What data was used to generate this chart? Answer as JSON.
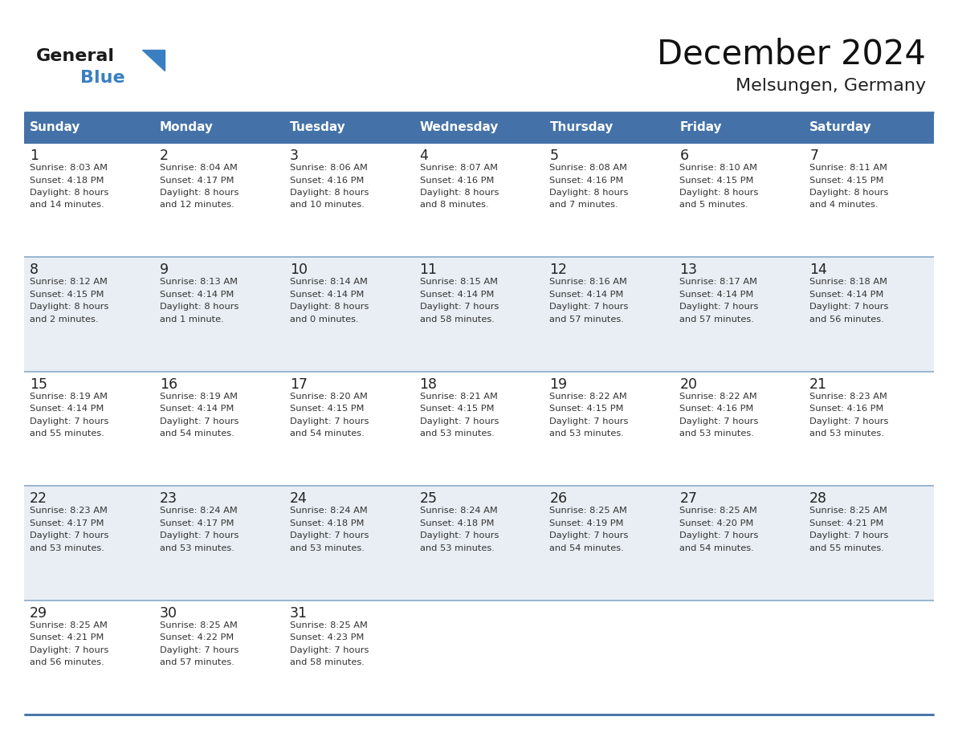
{
  "title": "December 2024",
  "subtitle": "Melsungen, Germany",
  "header_color": "#4472A8",
  "header_text_color": "#FFFFFF",
  "row_colors": [
    "#FFFFFF",
    "#E8EEF4"
  ],
  "day_label_color": "#222222",
  "text_color": "#333333",
  "border_color": "#4472A8",
  "line_color": "#8AAAC8",
  "days_of_week": [
    "Sunday",
    "Monday",
    "Tuesday",
    "Wednesday",
    "Thursday",
    "Friday",
    "Saturday"
  ],
  "weeks": [
    [
      {
        "day": 1,
        "sunrise": "8:03 AM",
        "sunset": "4:18 PM",
        "daylight": "8 hours",
        "daylight2": "and 14 minutes."
      },
      {
        "day": 2,
        "sunrise": "8:04 AM",
        "sunset": "4:17 PM",
        "daylight": "8 hours",
        "daylight2": "and 12 minutes."
      },
      {
        "day": 3,
        "sunrise": "8:06 AM",
        "sunset": "4:16 PM",
        "daylight": "8 hours",
        "daylight2": "and 10 minutes."
      },
      {
        "day": 4,
        "sunrise": "8:07 AM",
        "sunset": "4:16 PM",
        "daylight": "8 hours",
        "daylight2": "and 8 minutes."
      },
      {
        "day": 5,
        "sunrise": "8:08 AM",
        "sunset": "4:16 PM",
        "daylight": "8 hours",
        "daylight2": "and 7 minutes."
      },
      {
        "day": 6,
        "sunrise": "8:10 AM",
        "sunset": "4:15 PM",
        "daylight": "8 hours",
        "daylight2": "and 5 minutes."
      },
      {
        "day": 7,
        "sunrise": "8:11 AM",
        "sunset": "4:15 PM",
        "daylight": "8 hours",
        "daylight2": "and 4 minutes."
      }
    ],
    [
      {
        "day": 8,
        "sunrise": "8:12 AM",
        "sunset": "4:15 PM",
        "daylight": "8 hours",
        "daylight2": "and 2 minutes."
      },
      {
        "day": 9,
        "sunrise": "8:13 AM",
        "sunset": "4:14 PM",
        "daylight": "8 hours",
        "daylight2": "and 1 minute."
      },
      {
        "day": 10,
        "sunrise": "8:14 AM",
        "sunset": "4:14 PM",
        "daylight": "8 hours",
        "daylight2": "and 0 minutes."
      },
      {
        "day": 11,
        "sunrise": "8:15 AM",
        "sunset": "4:14 PM",
        "daylight": "7 hours",
        "daylight2": "and 58 minutes."
      },
      {
        "day": 12,
        "sunrise": "8:16 AM",
        "sunset": "4:14 PM",
        "daylight": "7 hours",
        "daylight2": "and 57 minutes."
      },
      {
        "day": 13,
        "sunrise": "8:17 AM",
        "sunset": "4:14 PM",
        "daylight": "7 hours",
        "daylight2": "and 57 minutes."
      },
      {
        "day": 14,
        "sunrise": "8:18 AM",
        "sunset": "4:14 PM",
        "daylight": "7 hours",
        "daylight2": "and 56 minutes."
      }
    ],
    [
      {
        "day": 15,
        "sunrise": "8:19 AM",
        "sunset": "4:14 PM",
        "daylight": "7 hours",
        "daylight2": "and 55 minutes."
      },
      {
        "day": 16,
        "sunrise": "8:19 AM",
        "sunset": "4:14 PM",
        "daylight": "7 hours",
        "daylight2": "and 54 minutes."
      },
      {
        "day": 17,
        "sunrise": "8:20 AM",
        "sunset": "4:15 PM",
        "daylight": "7 hours",
        "daylight2": "and 54 minutes."
      },
      {
        "day": 18,
        "sunrise": "8:21 AM",
        "sunset": "4:15 PM",
        "daylight": "7 hours",
        "daylight2": "and 53 minutes."
      },
      {
        "day": 19,
        "sunrise": "8:22 AM",
        "sunset": "4:15 PM",
        "daylight": "7 hours",
        "daylight2": "and 53 minutes."
      },
      {
        "day": 20,
        "sunrise": "8:22 AM",
        "sunset": "4:16 PM",
        "daylight": "7 hours",
        "daylight2": "and 53 minutes."
      },
      {
        "day": 21,
        "sunrise": "8:23 AM",
        "sunset": "4:16 PM",
        "daylight": "7 hours",
        "daylight2": "and 53 minutes."
      }
    ],
    [
      {
        "day": 22,
        "sunrise": "8:23 AM",
        "sunset": "4:17 PM",
        "daylight": "7 hours",
        "daylight2": "and 53 minutes."
      },
      {
        "day": 23,
        "sunrise": "8:24 AM",
        "sunset": "4:17 PM",
        "daylight": "7 hours",
        "daylight2": "and 53 minutes."
      },
      {
        "day": 24,
        "sunrise": "8:24 AM",
        "sunset": "4:18 PM",
        "daylight": "7 hours",
        "daylight2": "and 53 minutes."
      },
      {
        "day": 25,
        "sunrise": "8:24 AM",
        "sunset": "4:18 PM",
        "daylight": "7 hours",
        "daylight2": "and 53 minutes."
      },
      {
        "day": 26,
        "sunrise": "8:25 AM",
        "sunset": "4:19 PM",
        "daylight": "7 hours",
        "daylight2": "and 54 minutes."
      },
      {
        "day": 27,
        "sunrise": "8:25 AM",
        "sunset": "4:20 PM",
        "daylight": "7 hours",
        "daylight2": "and 54 minutes."
      },
      {
        "day": 28,
        "sunrise": "8:25 AM",
        "sunset": "4:21 PM",
        "daylight": "7 hours",
        "daylight2": "and 55 minutes."
      }
    ],
    [
      {
        "day": 29,
        "sunrise": "8:25 AM",
        "sunset": "4:21 PM",
        "daylight": "7 hours",
        "daylight2": "and 56 minutes."
      },
      {
        "day": 30,
        "sunrise": "8:25 AM",
        "sunset": "4:22 PM",
        "daylight": "7 hours",
        "daylight2": "and 57 minutes."
      },
      {
        "day": 31,
        "sunrise": "8:25 AM",
        "sunset": "4:23 PM",
        "daylight": "7 hours",
        "daylight2": "and 58 minutes."
      },
      null,
      null,
      null,
      null
    ]
  ],
  "logo_text1": "General",
  "logo_text2": "Blue",
  "logo_color1": "#1A1A1A",
  "logo_color2": "#3A7FC1",
  "fig_width": 11.88,
  "fig_height": 9.18,
  "dpi": 100
}
